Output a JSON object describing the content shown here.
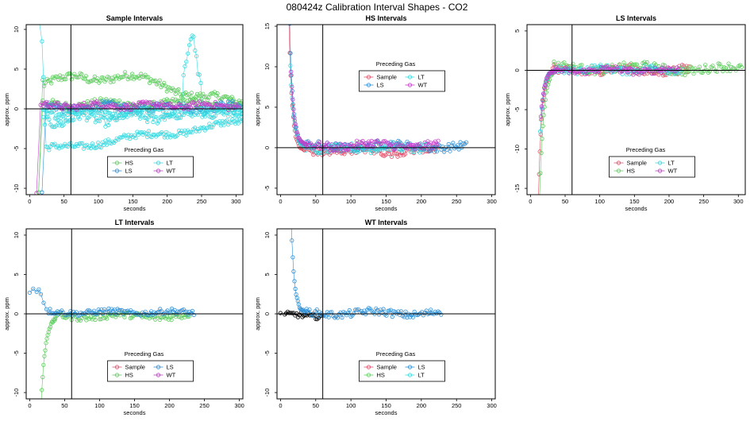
{
  "figure_title": "080424z   Calibration Interval Shapes - CO2",
  "colors": {
    "Sample": "#e0506a",
    "HS": "#5fcc5f",
    "LS": "#2e8fd6",
    "LT": "#3ad8df",
    "WT": "#c23cc6",
    "black": "#000000"
  },
  "chart_data": [
    {
      "type": "scatter",
      "title": "Sample Intervals",
      "xlabel": "seconds",
      "ylabel": "approx. ppm",
      "xlim": [
        -5,
        310
      ],
      "ylim": [
        -10.8,
        10.6
      ],
      "xticks": [
        0,
        50,
        100,
        150,
        200,
        250,
        300
      ],
      "yticks": [
        10,
        5,
        0,
        -5,
        -10
      ],
      "hline": 0,
      "vline": 60,
      "legend": {
        "title": "Preceding Gas",
        "position": "bottom-center",
        "entries": [
          [
            "HS",
            "LT"
          ],
          [
            "LS",
            "WT"
          ]
        ]
      },
      "series": [
        {
          "name": "HS",
          "color_key": "HS",
          "start": [
            13,
            -10.5
          ],
          "start_drop": true,
          "end": 310,
          "tracks": [
            {
              "base": 3.0,
              "amp": 0.6,
              "freq": 0.05,
              "slope": 0.0,
              "noise": 0.5
            },
            {
              "base": 0.6,
              "amp": 0.3,
              "freq": 0.06,
              "slope": 0.0,
              "noise": 0.5
            }
          ],
          "peak_profile": [
            [
              20,
              2.5
            ],
            [
              70,
              4.4
            ],
            [
              140,
              3.8
            ],
            [
              200,
              3.0
            ],
            [
              250,
              1.6
            ],
            [
              310,
              0.2
            ]
          ]
        },
        {
          "name": "LS",
          "color_key": "LS",
          "start": [
            18,
            -10.5
          ],
          "end": 310,
          "tracks": [
            {
              "base": 0.2,
              "amp": 0.3,
              "freq": 0.07,
              "slope": 0.0,
              "noise": 0.5
            }
          ]
        },
        {
          "name": "LT",
          "color_key": "LT",
          "start_high": [
            [
              14,
              11
            ],
            [
              18,
              8.5
            ],
            [
              20,
              4.0
            ]
          ],
          "end": 310,
          "tracks": [
            {
              "base": -5.2,
              "amp": 0.3,
              "freq": 0.05,
              "slope": 0.012,
              "noise": 0.4
            },
            {
              "base": -1.5,
              "amp": 0.5,
              "freq": 0.09,
              "slope": 0.004,
              "noise": 0.6
            },
            {
              "base": -0.4,
              "amp": 0.3,
              "freq": 0.07,
              "slope": 0.0,
              "noise": 0.5
            }
          ],
          "spike": [
            [
              222,
              3
            ],
            [
              228,
              6.2
            ],
            [
              233,
              8.6
            ],
            [
              236,
              9.4
            ],
            [
              240,
              8.2
            ],
            [
              244,
              5.0
            ],
            [
              250,
              2.5
            ]
          ]
        },
        {
          "name": "WT",
          "color_key": "WT",
          "start": [
            10,
            -10.6
          ],
          "end": 305,
          "tracks": [
            {
              "base": 0.4,
              "amp": 0.2,
              "freq": 0.08,
              "slope": 0.0,
              "noise": 0.4
            }
          ]
        }
      ]
    },
    {
      "type": "scatter",
      "title": "HS Intervals",
      "xlabel": "seconds",
      "ylabel": "approx. ppm",
      "xlim": [
        -5,
        305
      ],
      "ylim": [
        -5.8,
        15.2
      ],
      "xticks": [
        0,
        50,
        100,
        150,
        200,
        250,
        300
      ],
      "yticks": [
        15,
        10,
        5,
        0,
        -5
      ],
      "hline": 0,
      "vline": 60,
      "legend": {
        "title": "Preceding Gas",
        "position": "top-center",
        "entries": [
          [
            "Sample",
            "LT"
          ],
          [
            "LS",
            "WT"
          ]
        ]
      },
      "series": [
        {
          "name": "Sample",
          "color_key": "Sample",
          "decay": {
            "amp": 16,
            "tau": 4.5,
            "x0": 12
          },
          "end": 225,
          "tracks": [
            {
              "base": -0.4,
              "amp": 0.25,
              "freq": 0.07,
              "slope": 0.0,
              "noise": 0.5
            }
          ]
        },
        {
          "name": "LS",
          "color_key": "LS",
          "decay": {
            "amp": 15,
            "tau": 4.5,
            "x0": 13
          },
          "end": 265,
          "tracks": [
            {
              "base": 0.2,
              "amp": 0.25,
              "freq": 0.05,
              "slope": 0.0,
              "noise": 0.5
            }
          ]
        },
        {
          "name": "LT",
          "color_key": "LT",
          "decay": {
            "amp": 10,
            "tau": 5,
            "x0": 14
          },
          "end": 210,
          "tracks": [
            {
              "base": 0.0,
              "amp": 0.2,
              "freq": 0.09,
              "slope": 0.0,
              "noise": 0.5
            }
          ]
        },
        {
          "name": "WT",
          "color_key": "WT",
          "decay": {
            "amp": 9,
            "tau": 5,
            "x0": 15
          },
          "end": 225,
          "tracks": [
            {
              "base": 0.3,
              "amp": 0.25,
              "freq": 0.06,
              "slope": 0.0,
              "noise": 0.5
            }
          ]
        }
      ]
    },
    {
      "type": "scatter",
      "title": "LS Intervals",
      "xlabel": "seconds",
      "ylabel": "approx. ppm",
      "xlim": [
        -5,
        310
      ],
      "ylim": [
        -15.8,
        5.8
      ],
      "xticks": [
        0,
        50,
        100,
        150,
        200,
        250,
        300
      ],
      "yticks": [
        5,
        0,
        -5,
        -10,
        -15
      ],
      "hline": 0,
      "vline": 60,
      "legend": {
        "title": "Preceding Gas",
        "position": "bottom-center",
        "entries": [
          [
            "Sample",
            "LT"
          ],
          [
            "HS",
            "WT"
          ]
        ]
      },
      "series": [
        {
          "name": "Sample",
          "color_key": "Sample",
          "decay": {
            "amp": -22,
            "tau": 4.8,
            "x0": 10
          },
          "end": 230,
          "tracks": [
            {
              "base": 0.0,
              "amp": 0.25,
              "freq": 0.06,
              "slope": 0.0,
              "noise": 0.55
            }
          ]
        },
        {
          "name": "HS",
          "color_key": "HS",
          "decay": {
            "amp": -20,
            "tau": 6,
            "x0": 12
          },
          "end": 305,
          "tracks": [
            {
              "base": 0.4,
              "amp": 0.3,
              "freq": 0.05,
              "slope": -0.001,
              "noise": 0.55
            }
          ]
        },
        {
          "name": "LT",
          "color_key": "LT",
          "decay": {
            "amp": -8,
            "tau": 5,
            "x0": 14
          },
          "end": 220,
          "tracks": [
            {
              "base": 0.1,
              "amp": 0.2,
              "freq": 0.08,
              "slope": 0.0,
              "noise": 0.45
            }
          ]
        },
        {
          "name": "WT",
          "color_key": "WT",
          "decay": {
            "amp": -6,
            "tau": 5,
            "x0": 15
          },
          "end": 215,
          "tracks": [
            {
              "base": 0.0,
              "amp": 0.2,
              "freq": 0.07,
              "slope": 0.0,
              "noise": 0.4
            }
          ]
        }
      ]
    },
    {
      "type": "scatter",
      "title": "LT Intervals",
      "xlabel": "seconds",
      "ylabel": "approx. ppm",
      "xlim": [
        -5,
        305
      ],
      "ylim": [
        -10.8,
        10.8
      ],
      "xticks": [
        0,
        50,
        100,
        150,
        200,
        250,
        300
      ],
      "yticks": [
        10,
        5,
        0,
        -5,
        -10
      ],
      "hline": 0,
      "vline": 60,
      "legend": {
        "title": "Preceding Gas",
        "position": "bottom-center",
        "entries": [
          [
            "Sample",
            "LS"
          ],
          [
            "HS",
            "WT"
          ]
        ]
      },
      "series": [
        {
          "name": "HS",
          "color_key": "HS",
          "decay": {
            "amp": -14,
            "tau": 6,
            "x0": 15
          },
          "end": 230,
          "tracks": [
            {
              "base": -0.3,
              "amp": 0.2,
              "freq": 0.06,
              "slope": 0.0,
              "noise": 0.4
            }
          ]
        },
        {
          "name": "LS",
          "color_key": "LS",
          "start_plateau": [
            [
              0,
              2.7
            ],
            [
              5,
              3.2
            ],
            [
              10,
              2.8
            ],
            [
              13,
              3.1
            ],
            [
              16,
              2.5
            ],
            [
              20,
              1.4
            ],
            [
              24,
              0.6
            ]
          ],
          "end": 235,
          "tracks": [
            {
              "base": 0.2,
              "amp": 0.15,
              "freq": 0.07,
              "slope": 0.0,
              "noise": 0.35
            }
          ]
        }
      ]
    },
    {
      "type": "scatter",
      "title": "WT Intervals",
      "xlabel": "seconds",
      "ylabel": "approx. ppm",
      "xlim": [
        -5,
        305
      ],
      "ylim": [
        -10.8,
        10.8
      ],
      "xticks": [
        0,
        50,
        100,
        150,
        200,
        250,
        300
      ],
      "yticks": [
        10,
        5,
        0,
        -5,
        -10
      ],
      "hline": 0,
      "vline": 60,
      "legend": {
        "title": "Preceding Gas",
        "position": "bottom-center",
        "entries": [
          [
            "Sample",
            "LS"
          ],
          [
            "HS",
            "LT"
          ]
        ]
      },
      "series": [
        {
          "name": "Sample",
          "color_key": "black",
          "start": [
            0,
            0.1
          ],
          "end": 60,
          "tracks": [
            {
              "base": -0.2,
              "amp": 0.15,
              "freq": 0.1,
              "slope": 0.0,
              "noise": 0.35
            }
          ]
        },
        {
          "name": "LS",
          "color_key": "LS",
          "decay": {
            "amp": 12,
            "tau": 4.5,
            "x0": 15
          },
          "end": 230,
          "tracks": [
            {
              "base": 0.1,
              "amp": 0.25,
              "freq": 0.06,
              "slope": 0.0,
              "noise": 0.45
            }
          ]
        }
      ]
    }
  ]
}
